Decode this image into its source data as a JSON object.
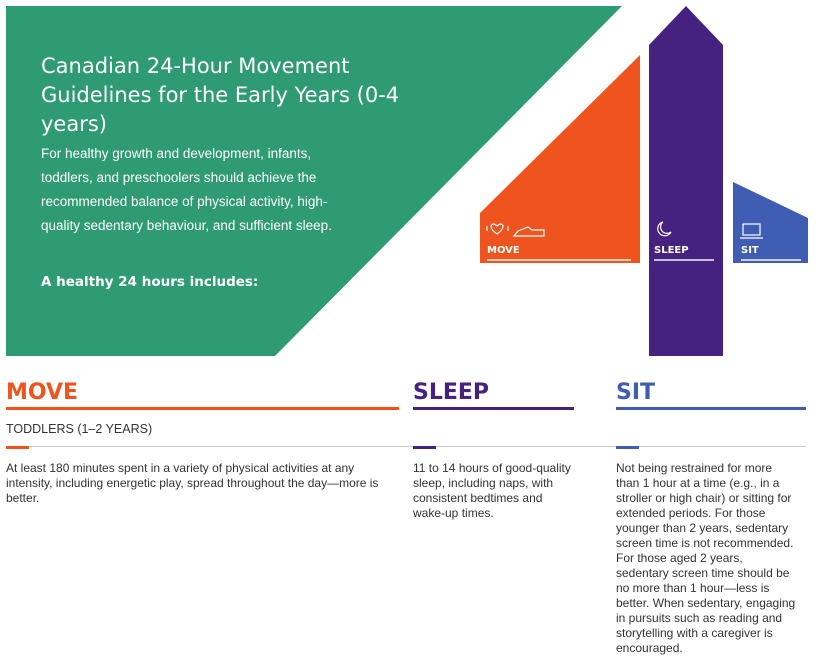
{
  "colors": {
    "green": "#2e9b74",
    "orange": "#f0541e",
    "purple": "#462280",
    "blue": "#3f5db3"
  },
  "hero": {
    "title": "Canadian 24-Hour Movement Guidelines for the Early Years (0-4 years)",
    "intro": "For healthy growth and development, infants, toddlers, and preschoolers should achieve the recommended balance of physical activity, high-quality sedentary behaviour, and sufficient sleep.",
    "healthy": "A healthy 24 hours includes:"
  },
  "graphic": {
    "move": "MOVE",
    "sleep": "SLEEP",
    "sit": "SIT",
    "icons": [
      "heart-icon",
      "shoe-icon",
      "moon-icon",
      "laptop-icon"
    ]
  },
  "age_group": "TODDLERS (1–2 YEARS)",
  "columns": [
    {
      "heading": "MOVE",
      "text": "At least 180 minutes spent in a variety of physical activities at any intensity, including energetic play, spread throughout the day—more is better."
    },
    {
      "heading": "SLEEP",
      "text": "11 to 14 hours of good-quality sleep, including naps, with consistent bedtimes and wake-up times."
    },
    {
      "heading": "SIT",
      "text": "Not being restrained for more than 1 hour at a time (e.g., in a stroller or high chair) or sitting for extended periods. For those younger than 2 years, sedentary screen time is not recommended. For those aged 2 years, sedentary screen time should be no more than 1 hour—less is better. When sedentary, engaging in pursuits such as reading and storytelling with a caregiver is encouraged."
    }
  ]
}
